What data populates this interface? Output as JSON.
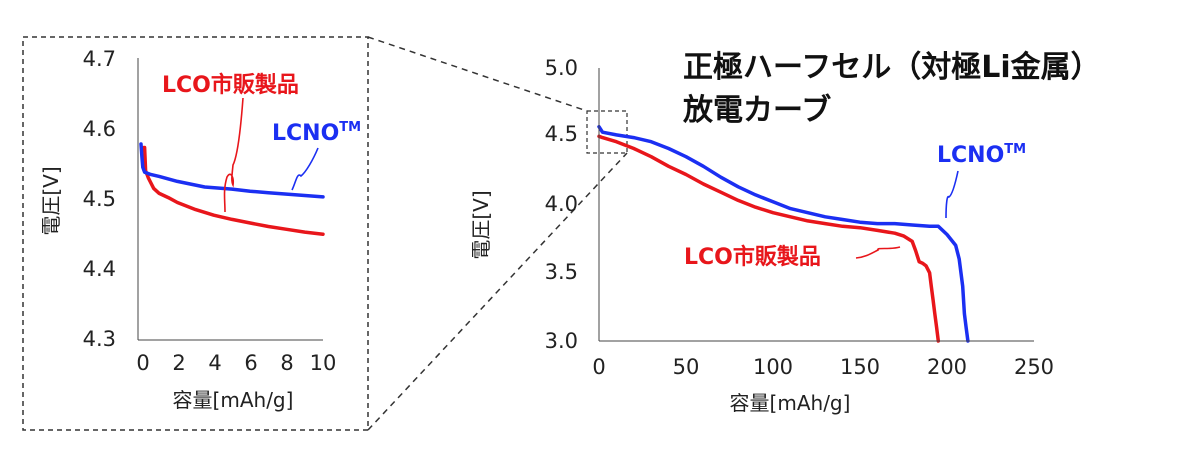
{
  "title_lines": [
    "正極ハーフセル（対極Li金属）",
    "放電カーブ"
  ],
  "colors": {
    "lco": "#e8161b",
    "lcno": "#1b2ff2"
  },
  "series_labels": {
    "lco": "LCO市販製品",
    "lcno_base": "LCNO",
    "lcno_sup": "TM"
  },
  "chart_data": [
    {
      "type": "line",
      "id": "main",
      "xlabel": "容量[mAh/g]",
      "ylabel": "電圧[V]",
      "xlim": [
        0,
        250
      ],
      "ylim": [
        3.0,
        5.0
      ],
      "xticks": [
        0,
        50,
        100,
        150,
        200,
        250
      ],
      "yticks": [
        3.0,
        3.5,
        4.0,
        4.5,
        5.0
      ],
      "ytick_labels": [
        "3.0",
        "3.5",
        "4.0",
        "4.5",
        "5.0"
      ],
      "grid": false,
      "series": [
        {
          "name": "LCO市販製品",
          "x": [
            0,
            2,
            10,
            20,
            30,
            40,
            50,
            60,
            70,
            80,
            90,
            100,
            110,
            120,
            130,
            140,
            150,
            160,
            170,
            175,
            180,
            182,
            184,
            186,
            188,
            190,
            191,
            192,
            193,
            194,
            195
          ],
          "y": [
            4.5,
            4.49,
            4.46,
            4.41,
            4.35,
            4.28,
            4.22,
            4.15,
            4.09,
            4.03,
            3.98,
            3.94,
            3.91,
            3.88,
            3.86,
            3.84,
            3.83,
            3.81,
            3.79,
            3.77,
            3.73,
            3.66,
            3.58,
            3.57,
            3.55,
            3.5,
            3.4,
            3.3,
            3.2,
            3.1,
            3.0
          ]
        },
        {
          "name": "LCNO",
          "x": [
            0,
            2,
            10,
            20,
            30,
            40,
            50,
            60,
            70,
            80,
            90,
            100,
            110,
            120,
            130,
            140,
            150,
            160,
            170,
            180,
            190,
            195,
            200,
            205,
            207,
            209,
            210,
            211,
            212
          ],
          "y": [
            4.57,
            4.53,
            4.51,
            4.49,
            4.46,
            4.41,
            4.35,
            4.28,
            4.2,
            4.13,
            4.07,
            4.02,
            3.97,
            3.94,
            3.91,
            3.89,
            3.87,
            3.86,
            3.86,
            3.85,
            3.84,
            3.84,
            3.78,
            3.7,
            3.6,
            3.4,
            3.2,
            3.1,
            3.0
          ]
        }
      ]
    },
    {
      "type": "line",
      "id": "inset",
      "xlabel": "容量[mAh/g]",
      "ylabel": "電圧[V]",
      "xlim": [
        0,
        10
      ],
      "ylim": [
        4.3,
        4.7
      ],
      "xticks": [
        0,
        2,
        4,
        6,
        8,
        10
      ],
      "yticks": [
        4.3,
        4.4,
        4.5,
        4.6,
        4.7
      ],
      "ytick_labels": [
        "4.3",
        "4.4",
        "4.5",
        "4.6",
        "4.7"
      ],
      "grid": false,
      "series": [
        {
          "name": "LCO市販製品",
          "x": [
            0.1,
            0.15,
            0.2,
            0.25,
            0.4,
            0.5,
            0.7,
            1.0,
            1.5,
            2.0,
            3.0,
            4.0,
            5.0,
            6.0,
            7.0,
            8.0,
            9.0,
            10.0
          ],
          "y": [
            4.57,
            4.573,
            4.573,
            4.54,
            4.53,
            4.525,
            4.515,
            4.508,
            4.502,
            4.495,
            4.485,
            4.477,
            4.471,
            4.466,
            4.461,
            4.457,
            4.453,
            4.45
          ]
        },
        {
          "name": "LCNO",
          "x": [
            0,
            0.05,
            0.1,
            0.2,
            0.3,
            0.5,
            1.0,
            2.0,
            3.5,
            5.0,
            6.0,
            7.0,
            8.0,
            9.0,
            10.0
          ],
          "y": [
            4.578,
            4.56,
            4.545,
            4.538,
            4.537,
            4.535,
            4.532,
            4.525,
            4.517,
            4.514,
            4.511,
            4.509,
            4.507,
            4.505,
            4.503
          ]
        }
      ]
    }
  ]
}
